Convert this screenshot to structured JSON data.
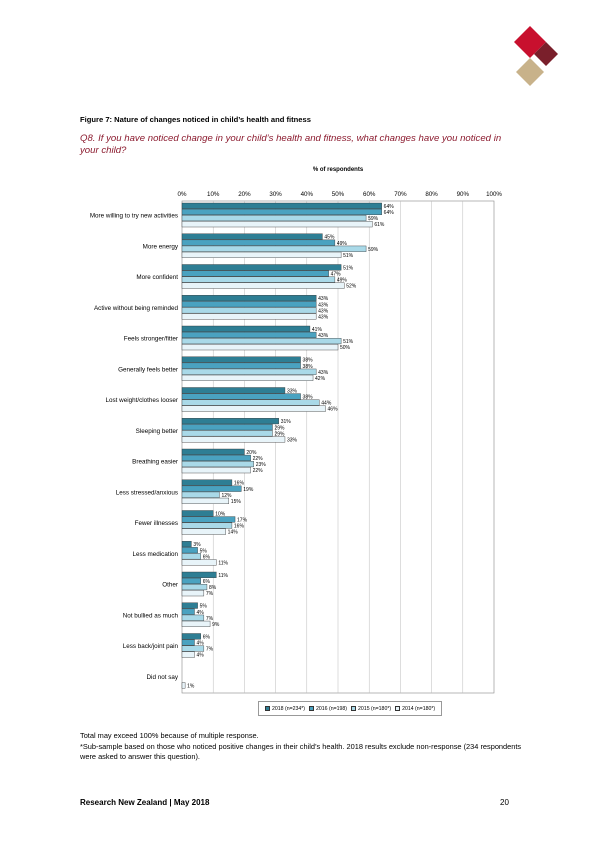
{
  "figure_title": "Figure 7: Nature of changes noticed in child’s health and fitness",
  "question": "Q8. If you have noticed change in your child’s health and fitness, what changes have you noticed in your child?",
  "note_total": "Total may exceed 100% because of multiple response.",
  "note_subsample": "*Sub-sample based on those who noticed positive changes in their child’s health. 2018 results exclude non-response (234 respondents were asked to answer this question).",
  "footer_left": "Research New Zealand   |   May 2018",
  "page_number": "20",
  "colors": {
    "s2018": "#2e7e94",
    "s2016": "#4aa2c0",
    "s2015": "#a9d9e8",
    "s2014": "#e8f4f9",
    "accent": "#8b1a2e",
    "logo_red": "#c8102e",
    "logo_dark": "#7a1f2b",
    "logo_tan": "#c8b28a"
  },
  "chart_data": {
    "type": "bar",
    "orientation": "horizontal",
    "xlabel": "% of respondents",
    "xlim": [
      0,
      100
    ],
    "xticks": [
      "0%",
      "10%",
      "20%",
      "30%",
      "40%",
      "50%",
      "60%",
      "70%",
      "80%",
      "90%",
      "100%"
    ],
    "grid": true,
    "legend_position": "bottom",
    "categories": [
      "More willing to try new activities",
      "More energy",
      "More confident",
      "Active without being reminded",
      "Feels stronger/fitter",
      "Generally feels better",
      "Lost weight/clothes looser",
      "Sleeping better",
      "Breathing easier",
      "Less stressed/anxious",
      "Fewer illnesses",
      "Less medication",
      "Other",
      "Not bullied as much",
      "Less back/joint pain",
      "Did not say"
    ],
    "series": [
      {
        "name": "2018 (n=234*)",
        "values": [
          64,
          45,
          51,
          43,
          41,
          38,
          33,
          31,
          20,
          16,
          10,
          3,
          11,
          5,
          6,
          null
        ]
      },
      {
        "name": "2016 (n=198)",
        "values": [
          64,
          49,
          47,
          43,
          43,
          38,
          38,
          29,
          22,
          19,
          17,
          5,
          6,
          4,
          4,
          null
        ]
      },
      {
        "name": "2015 (n=180*)",
        "values": [
          59,
          59,
          49,
          43,
          51,
          43,
          44,
          29,
          23,
          12,
          16,
          6,
          8,
          7,
          7,
          null
        ]
      },
      {
        "name": "2014 (n=180*)",
        "values": [
          61,
          51,
          52,
          43,
          50,
          42,
          46,
          33,
          22,
          15,
          14,
          11,
          7,
          9,
          4,
          1
        ]
      }
    ]
  }
}
